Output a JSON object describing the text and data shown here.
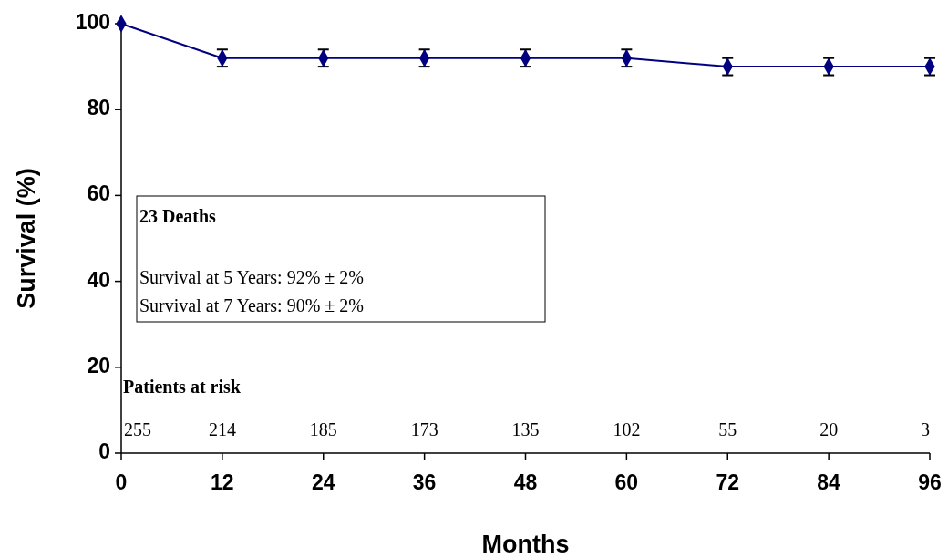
{
  "chart_data": {
    "type": "line",
    "xlabel": "Months",
    "ylabel": "Survival (%)",
    "x": [
      0,
      12,
      24,
      36,
      48,
      60,
      72,
      84,
      96
    ],
    "series": [
      {
        "color": "#000080",
        "values": [
          100,
          92,
          92,
          92,
          92,
          92,
          90,
          90,
          90
        ],
        "errors": [
          null,
          2,
          2,
          2,
          2,
          2,
          2,
          2,
          2
        ]
      }
    ],
    "xlim": [
      0,
      96
    ],
    "xticks": [
      0,
      12,
      24,
      36,
      48,
      60,
      72,
      84,
      96
    ],
    "ylim": [
      0,
      100
    ],
    "yticks": [
      0,
      20,
      40,
      60,
      80,
      100
    ],
    "grid": false,
    "marker": "diamond",
    "line_style": "solid",
    "annotations": [
      "23 Deaths",
      "Survival at 5 Years: 92% ± 2%",
      "Survival at 7 Years: 90% ± 2%",
      "Patients at risk",
      "255",
      "214",
      "185",
      "173",
      "135",
      "102",
      "55",
      "20",
      "3"
    ]
  }
}
